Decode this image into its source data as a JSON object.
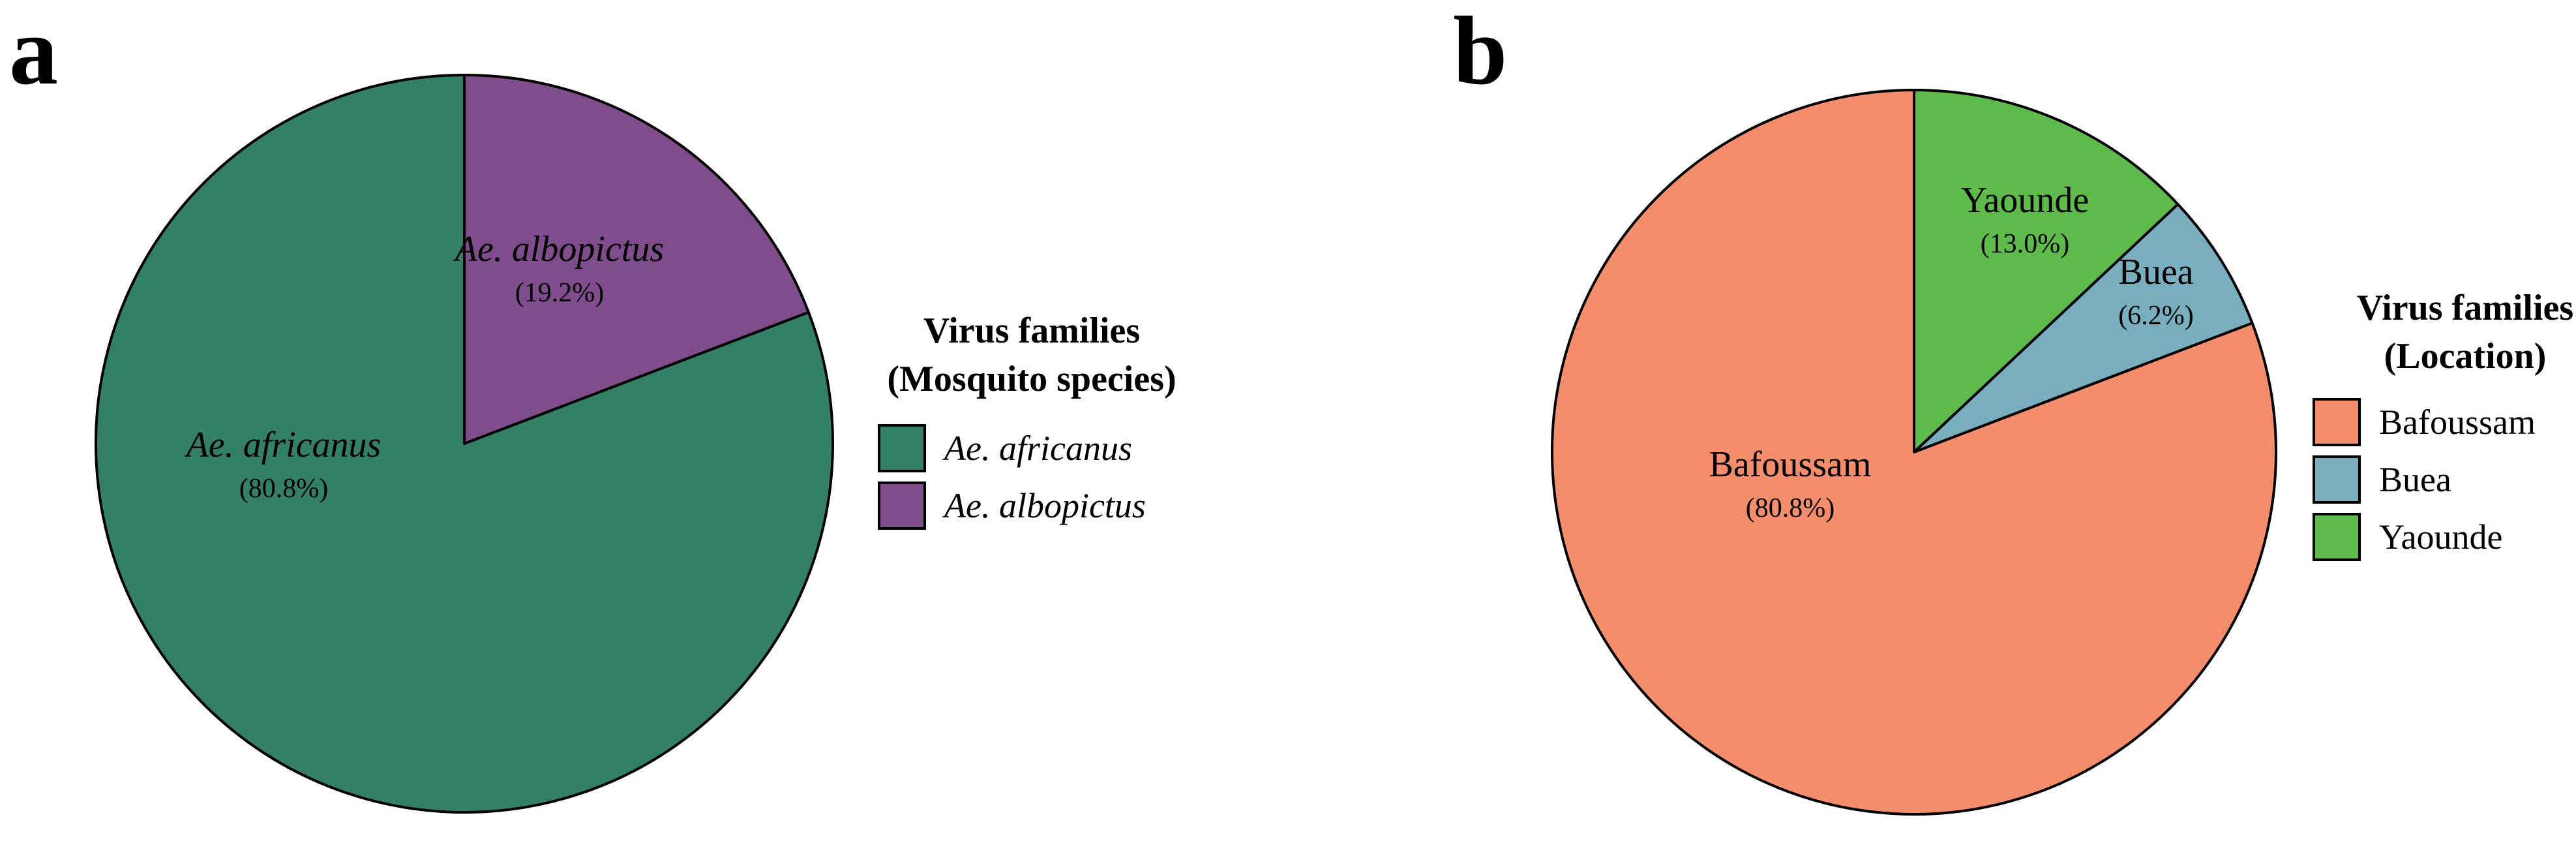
{
  "panels": [
    {
      "letter": "a",
      "legend_title_lines": [
        "Virus families",
        "(Mosquito species)"
      ]
    },
    {
      "letter": "b",
      "legend_title_lines": [
        "Virus families",
        "(Location)"
      ]
    }
  ],
  "chart_data": [
    {
      "type": "pie",
      "panel": "a",
      "legend_title": "Virus families (Mosquito species)",
      "legend_placement": "right",
      "slices": [
        {
          "label": "Ae. africanus",
          "value": 80.8,
          "display": "(80.8%)",
          "color": "#338066",
          "italic": true
        },
        {
          "label": "Ae. albopictus",
          "value": 19.2,
          "display": "(19.2%)",
          "color": "#804D8C",
          "italic": true
        }
      ]
    },
    {
      "type": "pie",
      "panel": "b",
      "legend_title": "Virus families (Location)",
      "legend_placement": "right",
      "slices": [
        {
          "label": "Bafoussam",
          "value": 80.8,
          "display": "(80.8%)",
          "color": "#F48D6B",
          "italic": false
        },
        {
          "label": "Buea",
          "value": 6.2,
          "display": "(6.2%)",
          "color": "#78AEBE",
          "italic": false
        },
        {
          "label": "Yaounde",
          "value": 13.0,
          "display": "(13.0%)",
          "color": "#5EBB4B",
          "italic": false
        }
      ]
    }
  ]
}
